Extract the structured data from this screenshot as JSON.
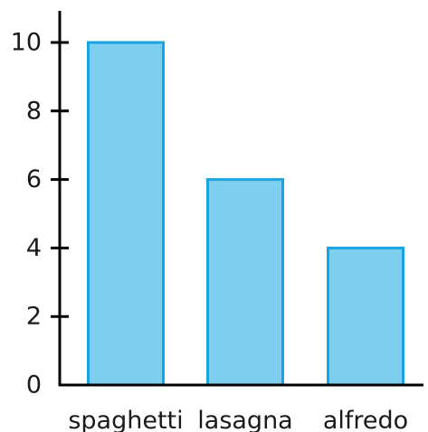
{
  "chart_data": {
    "type": "bar",
    "title": "",
    "xlabel": "",
    "ylabel": "",
    "categories": [
      "spaghetti",
      "lasagna",
      "alfredo"
    ],
    "values": [
      10,
      6,
      4
    ],
    "ylim": [
      0,
      10
    ],
    "yticks": [
      "0",
      "2",
      "4",
      "6",
      "8",
      "10"
    ],
    "grid": false,
    "legend": "none",
    "colors": {
      "bar_fill": "#7ecfef",
      "bar_stroke": "#1aa5e0",
      "axis": "#000000",
      "text": "#1a1a1a"
    }
  }
}
